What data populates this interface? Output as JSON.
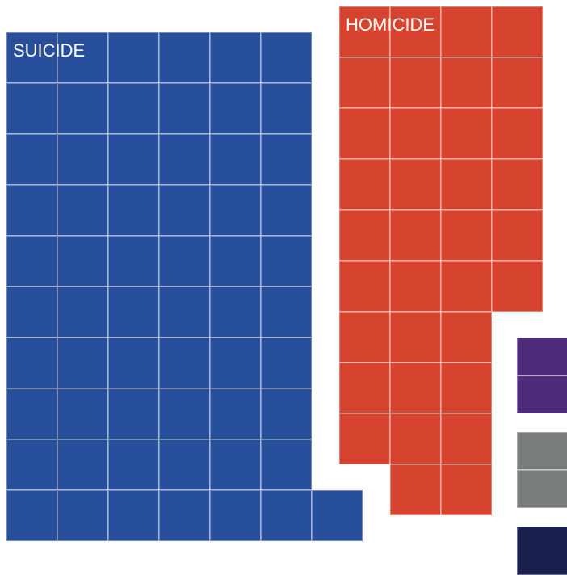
{
  "chart_data": {
    "type": "waffle",
    "series": [
      {
        "name": "SUICIDE",
        "color": "#264e9a",
        "values": [
          61
        ]
      },
      {
        "name": "HOMICIDE",
        "color": "#d6432f",
        "values": [
          35
        ]
      },
      {
        "name": null,
        "color": "#4f2b7c",
        "values": [
          2
        ]
      },
      {
        "name": null,
        "color": "#797c7d",
        "values": [
          2
        ]
      },
      {
        "name": null,
        "color": "#1a1f4d",
        "values": [
          1
        ]
      }
    ]
  }
}
